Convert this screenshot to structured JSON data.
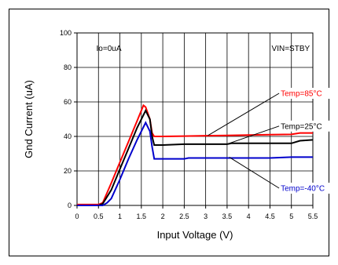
{
  "chart_data": {
    "type": "line",
    "xlabel": "Input Voltage (V)",
    "ylabel": "Gnd Current (uA)",
    "xlim": [
      0,
      5.5
    ],
    "ylim": [
      0,
      100
    ],
    "x_ticks": [
      "0",
      "0.5",
      "1",
      "1.5",
      "2",
      "2.5",
      "3",
      "3.5",
      "4",
      "4.5",
      "5",
      "5.5"
    ],
    "y_ticks": [
      "0",
      "20",
      "40",
      "60",
      "80",
      "100"
    ],
    "grid": true,
    "annotations": [
      {
        "key": "io",
        "text": "Io=0uA"
      },
      {
        "key": "vin",
        "text": "VIN=STBY"
      }
    ],
    "series": [
      {
        "name": "Temp=85°C",
        "color": "#ff0000",
        "x": [
          0.0,
          0.5,
          0.6,
          0.8,
          1.0,
          1.2,
          1.4,
          1.55,
          1.6,
          1.7,
          1.75,
          1.8,
          2.0,
          2.5,
          3.0,
          3.5,
          4.0,
          4.5,
          5.0,
          5.2,
          5.5
        ],
        "y": [
          0.5,
          0.5,
          1.5,
          13,
          25,
          37,
          49,
          58,
          57,
          50,
          42,
          40,
          40,
          40.2,
          40.4,
          40.6,
          40.8,
          41,
          41.2,
          42,
          42
        ]
      },
      {
        "name": "Temp=25°C",
        "color": "#000000",
        "x": [
          0.0,
          0.5,
          0.6,
          0.65,
          0.8,
          1.0,
          1.2,
          1.4,
          1.6,
          1.7,
          1.75,
          1.8,
          2.0,
          2.5,
          2.6,
          3.0,
          3.5,
          3.6,
          4.0,
          4.5,
          5.0,
          5.2,
          5.5
        ],
        "y": [
          0.0,
          0.0,
          1,
          3,
          9,
          21,
          33,
          45,
          55,
          50,
          40,
          35,
          35,
          35.5,
          35.5,
          35.5,
          35.5,
          36,
          36,
          36,
          36,
          37.5,
          38
        ]
      },
      {
        "name": "Temp=-40°C",
        "color": "#0000cc",
        "x": [
          0.0,
          0.6,
          0.7,
          0.8,
          1.0,
          1.2,
          1.4,
          1.6,
          1.7,
          1.75,
          1.8,
          2.0,
          2.5,
          2.6,
          3.0,
          3.5,
          4.0,
          4.5,
          5.0,
          5.5
        ],
        "y": [
          0.0,
          0.0,
          1.5,
          4,
          15,
          27,
          38,
          48,
          43,
          34,
          27,
          27,
          27,
          27.5,
          27.5,
          27.5,
          27.5,
          27.5,
          28,
          28
        ]
      }
    ]
  }
}
